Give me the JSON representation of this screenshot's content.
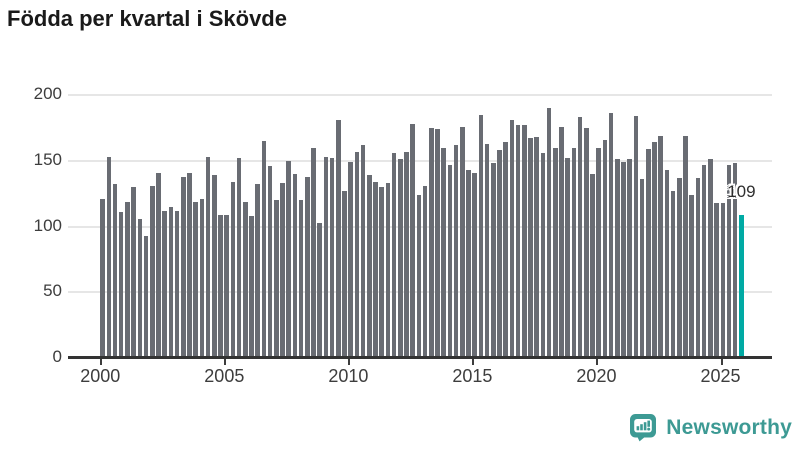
{
  "title": "Födda per kvartal i Skövde",
  "annotation": {
    "value": "109"
  },
  "footer": {
    "brand": "Newsworthy"
  },
  "colors": {
    "bar": "#696c73",
    "highlight": "#00aaa4",
    "grid": "#e6e6e6",
    "axis": "#333333",
    "tick_text": "#3d3d3d",
    "title_text": "#1a1a1a",
    "logo": "#3d9a94"
  },
  "y_axis": {
    "tick_labels": [
      "0",
      "50",
      "100",
      "150",
      "200"
    ]
  },
  "x_axis": {
    "tick_labels": [
      "2000",
      "2005",
      "2010",
      "2015",
      "2020",
      "2025"
    ]
  },
  "chart_data": {
    "type": "bar",
    "title": "Födda per kvartal i Skövde",
    "xlabel": "",
    "ylabel": "",
    "ylim": [
      0,
      200
    ],
    "yticks": [
      0,
      50,
      100,
      150,
      200
    ],
    "xticks": [
      "2000",
      "2005",
      "2010",
      "2015",
      "2020",
      "2025"
    ],
    "grid": true,
    "legend": "none",
    "highlight_index": 103,
    "annotation": {
      "index": 103,
      "text": "109"
    },
    "categories": [
      "2000Q1",
      "2000Q2",
      "2000Q3",
      "2000Q4",
      "2001Q1",
      "2001Q2",
      "2001Q3",
      "2001Q4",
      "2002Q1",
      "2002Q2",
      "2002Q3",
      "2002Q4",
      "2003Q1",
      "2003Q2",
      "2003Q3",
      "2003Q4",
      "2004Q1",
      "2004Q2",
      "2004Q3",
      "2004Q4",
      "2005Q1",
      "2005Q2",
      "2005Q3",
      "2005Q4",
      "2006Q1",
      "2006Q2",
      "2006Q3",
      "2006Q4",
      "2007Q1",
      "2007Q2",
      "2007Q3",
      "2007Q4",
      "2008Q1",
      "2008Q2",
      "2008Q3",
      "2008Q4",
      "2009Q1",
      "2009Q2",
      "2009Q3",
      "2009Q4",
      "2010Q1",
      "2010Q2",
      "2010Q3",
      "2010Q4",
      "2011Q1",
      "2011Q2",
      "2011Q3",
      "2011Q4",
      "2012Q1",
      "2012Q2",
      "2012Q3",
      "2012Q4",
      "2013Q1",
      "2013Q2",
      "2013Q3",
      "2013Q4",
      "2014Q1",
      "2014Q2",
      "2014Q3",
      "2014Q4",
      "2015Q1",
      "2015Q2",
      "2015Q3",
      "2015Q4",
      "2016Q1",
      "2016Q2",
      "2016Q3",
      "2016Q4",
      "2017Q1",
      "2017Q2",
      "2017Q3",
      "2017Q4",
      "2018Q1",
      "2018Q2",
      "2018Q3",
      "2018Q4",
      "2019Q1",
      "2019Q2",
      "2019Q3",
      "2019Q4",
      "2020Q1",
      "2020Q2",
      "2020Q3",
      "2020Q4",
      "2021Q1",
      "2021Q2",
      "2021Q3",
      "2021Q4",
      "2022Q1",
      "2022Q2",
      "2022Q3",
      "2022Q4",
      "2023Q1",
      "2023Q2",
      "2023Q3",
      "2023Q4",
      "2024Q1",
      "2024Q2",
      "2024Q3",
      "2024Q4",
      "2025Q1",
      "2025Q2",
      "2025Q3",
      "2025Q4"
    ],
    "values": [
      121,
      153,
      132,
      111,
      119,
      130,
      106,
      93,
      131,
      141,
      112,
      115,
      112,
      138,
      141,
      119,
      121,
      153,
      139,
      109,
      109,
      134,
      152,
      119,
      108,
      132,
      165,
      146,
      120,
      133,
      150,
      140,
      120,
      138,
      160,
      103,
      153,
      152,
      181,
      127,
      149,
      157,
      162,
      139,
      134,
      130,
      133,
      156,
      151,
      157,
      178,
      124,
      131,
      175,
      174,
      160,
      147,
      162,
      176,
      143,
      141,
      185,
      163,
      148,
      158,
      164,
      181,
      177,
      177,
      167,
      168,
      156,
      190,
      160,
      176,
      152,
      160,
      183,
      175,
      140,
      160,
      166,
      186,
      151,
      149,
      151,
      184,
      136,
      159,
      164,
      169,
      143,
      127,
      137,
      169,
      124,
      137,
      147,
      151,
      118,
      118,
      147,
      148,
      109
    ]
  }
}
